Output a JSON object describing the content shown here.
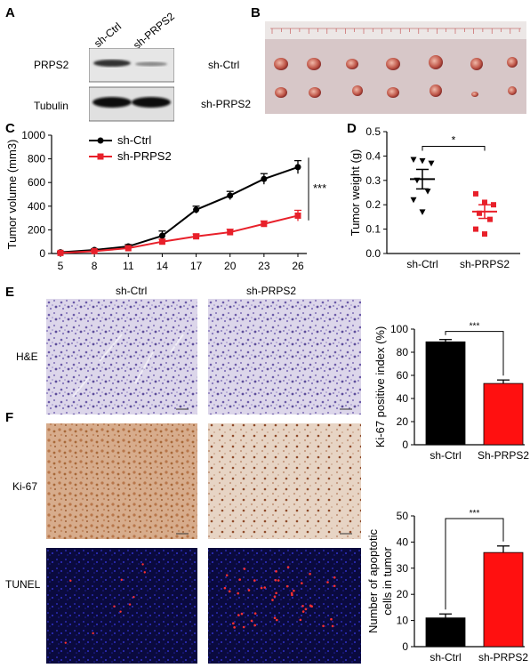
{
  "panels": {
    "A": "A",
    "B": "B",
    "C": "C",
    "D": "D",
    "E": "E",
    "F": "F"
  },
  "panel_a": {
    "col_labels": [
      "sh-Ctrl",
      "sh-PRPS2"
    ],
    "row_labels": [
      "PRPS2",
      "Tubulin"
    ]
  },
  "panel_b": {
    "row_labels": [
      "sh-Ctrl",
      "sh-PRPS2"
    ]
  },
  "panel_e": {
    "col_labels": [
      "sh-Ctrl",
      "sh-PRPS2"
    ],
    "row_labels": [
      "H&E"
    ]
  },
  "panel_f": {
    "row_labels": [
      "Ki-67",
      "TUNEL"
    ]
  },
  "chart_data": [
    {
      "id": "C",
      "type": "line",
      "xlabel": "",
      "ylabel": "Tumor volume (mm3)",
      "x": [
        5,
        8,
        11,
        14,
        17,
        20,
        23,
        26
      ],
      "ylim": [
        0,
        1000
      ],
      "yticks": [
        0,
        200,
        400,
        600,
        800,
        1000
      ],
      "series": [
        {
          "name": "sh-Ctrl",
          "color": "#000000",
          "values": [
            10,
            30,
            60,
            150,
            370,
            490,
            630,
            730
          ],
          "err": [
            5,
            10,
            15,
            40,
            30,
            35,
            45,
            55
          ]
        },
        {
          "name": "sh-PRPS2",
          "color": "#e8202a",
          "values": [
            5,
            20,
            45,
            100,
            145,
            180,
            250,
            320
          ],
          "err": [
            4,
            8,
            12,
            20,
            20,
            25,
            25,
            45
          ]
        }
      ],
      "significance": "***",
      "legend": "top-left"
    },
    {
      "id": "D",
      "type": "scatter",
      "xlabel": "",
      "ylabel": "Tumor weight (g)",
      "categories": [
        "sh-Ctrl",
        "sh-PRPS2"
      ],
      "ylim": [
        0,
        0.5
      ],
      "yticks": [
        "0.0",
        "0.1",
        "0.2",
        "0.3",
        "0.4",
        "0.5"
      ],
      "series": [
        {
          "name": "sh-Ctrl",
          "color": "#000000",
          "marker": "triangle-down",
          "values": [
            0.385,
            0.38,
            0.37,
            0.3,
            0.255,
            0.22,
            0.17
          ],
          "mean": 0.305,
          "sem": 0.04
        },
        {
          "name": "sh-PRPS2",
          "color": "#e8202a",
          "marker": "square",
          "values": [
            0.245,
            0.21,
            0.2,
            0.165,
            0.14,
            0.1,
            0.08
          ],
          "mean": 0.172,
          "sem": 0.028
        }
      ],
      "significance": "*"
    },
    {
      "id": "E-bar",
      "type": "bar",
      "xlabel": "",
      "ylabel": "Ki-67 positive index (%)",
      "categories": [
        "sh-Ctrl",
        "Sh-PRPS2"
      ],
      "values": [
        89,
        53
      ],
      "err": [
        2,
        3
      ],
      "colors": [
        "#000000",
        "#ff1010"
      ],
      "ylim": [
        0,
        100
      ],
      "yticks": [
        0,
        20,
        40,
        60,
        80,
        100
      ],
      "significance": "***"
    },
    {
      "id": "F-bar",
      "type": "bar",
      "xlabel": "",
      "ylabel": "Number of apoptotic cells in tumor",
      "categories": [
        "sh-Ctrl",
        "sh-PRPS2"
      ],
      "values": [
        11,
        36
      ],
      "err": [
        1.5,
        2.5
      ],
      "colors": [
        "#000000",
        "#ff1010"
      ],
      "ylim": [
        0,
        50
      ],
      "yticks": [
        0,
        10,
        20,
        30,
        40,
        50
      ],
      "significance": "***"
    }
  ]
}
